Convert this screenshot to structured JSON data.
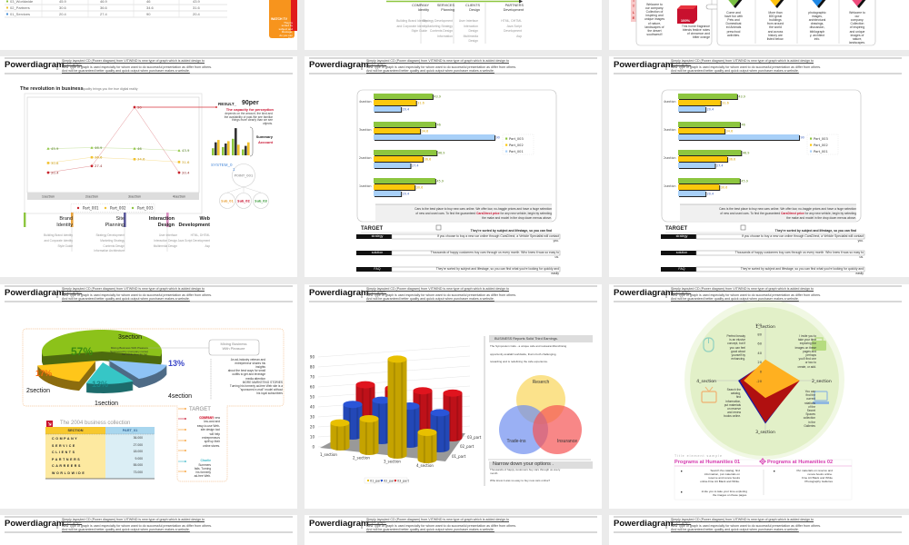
{
  "header": {
    "title": "Powerdiagram",
    "desc": [
      "Simply layouted CD (Power diagram) from VITWIND is new type of graph which is added design to",
      "Simple graph.",
      "New Type of graph is used especially for whom want to do successful presentation as differ from others.",
      "And will be guaranteed better quality and quick output when purchaser makes a website."
    ]
  },
  "top_table": {
    "rows": [
      {
        "label": "03_Worldwide",
        "color": "#8dc63f",
        "values": [
          "45.9",
          "46.9",
          "46",
          "43.9"
        ]
      },
      {
        "label": "02_Partners",
        "color": "#f2c12e",
        "values": [
          "30.6",
          "36.6",
          "34.6",
          "31.6"
        ]
      },
      {
        "label": "01_Services",
        "color": "#4a90d9",
        "values": [
          "20.4",
          "27.4",
          "90",
          "20.4"
        ]
      }
    ],
    "watch_tv": {
      "label": "WATCH TV",
      "lines": [
        "They're",
        "sorted by",
        "subject and",
        "lifestage,",
        "do you can",
        "find"
      ]
    }
  },
  "top_services": [
    {
      "title": "COMPANY",
      "sub": "Identity",
      "items": [
        "Building Brand Identity",
        "and Corporate Identity",
        "Style Guide"
      ]
    },
    {
      "title": "SERVICES",
      "sub": "Planning",
      "items": [
        "Strategy Development",
        "Marketing Strategy",
        "Contents Design",
        "Information"
      ]
    },
    {
      "title": "CLIENTS",
      "sub": "Design",
      "items": [
        "User Interface",
        "Interaction",
        "Design",
        "Multimedia",
        "Design"
      ]
    },
    {
      "title": "PARTNERS",
      "sub": "Development",
      "items": [
        "HTML, DHTML",
        "Java Script",
        "Development",
        "Asp"
      ]
    }
  ],
  "top_cards": {
    "title_letters": [
      "T",
      "I",
      "T",
      "L",
      "E"
    ],
    "welcome": [
      "Welcome to",
      "our company.",
      "Collection of",
      "inspiring and",
      "unique images",
      "of nature,",
      "landscapes of",
      "the desert",
      "southwest!!"
    ],
    "cube_label": "100%",
    "fragrance": [
      "This home fragrance",
      "blends festive notes",
      "of cinnamon and",
      "bitter orange"
    ],
    "cards": [
      {
        "color": "#7ac143",
        "label": "Part_01",
        "lines": [
          "Come and",
          "have fun with",
          "Pets and",
          "Domesticat",
          "ed Animals",
          "preschool",
          "activities."
        ]
      },
      {
        "color": "#ffc20e",
        "label": "Part_02",
        "lines": [
          "More than",
          "800 great",
          "buildings",
          "from around",
          "the world",
          "and across",
          "history are",
          "listed below."
        ]
      },
      {
        "color": "#1e88e5",
        "label": "Part_03",
        "lines": [
          "photographic",
          "images,",
          "architectural",
          "drawings,",
          "discussion,",
          "bibliograph",
          "y, architect",
          "info."
        ]
      },
      {
        "color": "#ef4b7c",
        "label": "Part_04",
        "lines": [
          "Welcome to",
          "our",
          "company.",
          "Collection",
          "of inspiring",
          "and unique",
          "images of",
          "nature,",
          "landscapes."
        ]
      }
    ]
  },
  "revolution": {
    "title": "The revolution in business",
    "subtitle": "quality brings you the true digital reality",
    "result": {
      "label": "RESULT_",
      "value": "90per",
      "heading": "The capacity for perception",
      "lines": [
        "depends on the amount, the kind and",
        "the availability of past.We see familiar",
        "things more clearly than we see",
        "objects."
      ],
      "summary": "Summary",
      "account": "Account"
    },
    "mini_chart": [
      [
        12,
        22,
        26
      ],
      [
        14,
        20,
        24
      ],
      [
        28,
        46,
        18
      ],
      [
        10,
        16,
        22
      ]
    ],
    "system": {
      "label": "SYSTEM_0",
      "label2": "1",
      "point": "POINT_001",
      "subs": [
        "Sub_01",
        "Sub_02",
        "Sub_03"
      ]
    },
    "categories": [
      {
        "title": [
          "Brand",
          "Identity"
        ],
        "color": "#e8a33d",
        "items": [
          "Building Brand Identity",
          "and Corporate Identity",
          "Style Guide"
        ]
      },
      {
        "title": [
          "Site",
          "Planning"
        ],
        "color": "#5c5a9c",
        "items": [
          "Strategy Development",
          "Marketing Strategy",
          "Contents Design",
          "Information Architecture"
        ]
      },
      {
        "title": [
          "Interaction",
          "Design"
        ],
        "color": "#d98fc0",
        "items": [
          "User Interface",
          "Interaction Design",
          "Multimedia Design"
        ]
      },
      {
        "title": [
          "Web",
          "Development"
        ],
        "color": "#8dc63f",
        "items": [
          "HTML, DHTML",
          "Java Script Development",
          "Asp"
        ]
      }
    ]
  },
  "bar_panel": {
    "note": [
      "Cars is the best place to buy new cars online. We offer low, no-haggle prices and have a huge selection",
      "of new and used cars. To find the guaranteed ",
      "CarsDirect price",
      " for any new vehicle, begin by selecting",
      "the make and model in the drop down menus above."
    ],
    "target": "TARGET",
    "target_note": "They're sorted by subject and lifestage, so you can find",
    "rows": [
      {
        "label": "strategy",
        "text": "If you choose to buy a new car online through CarsDirect, a Vehicle Specialist will contact",
        "text2": "you."
      },
      {
        "label": "solution",
        "text": "Thousands of happy customers buy cars through us every month. Who knew it was so easy to",
        "text2": "us."
      },
      {
        "label": "FAQ",
        "text": "They're sorted by subject and lifestage, so you can find what you're looking for quickly and",
        "text2": "easily"
      }
    ]
  },
  "pie_panel": {
    "green_text": [
      "Mixing Business With Pleasure",
      "Sponsored by (company name)",
      "Set aside time for fun."
    ],
    "box": [
      "Mixing Business",
      "With Pleasure"
    ],
    "side_text": [
      "An ad-industry veteran and",
      "entrepreneur shares his",
      "insights",
      "about the best ways for small",
      "outfits to get and leverage",
      "media attention",
      "MORE MARKETING STORIES",
      "Turning his formerly ad-free Web site is a",
      "\"sponsored e-mail\" model without",
      "his loyal subscribers"
    ],
    "target": "TARGET",
    "company": "COMPANY",
    "company_lines": [
      " new",
      "low-cost and",
      "easy-to-use Web-",
      "site design tool",
      "will help",
      "entrepreneurs",
      "spiff up their",
      "online stores."
    ],
    "charlie": "Charlie",
    "charlie_lines": [
      "Summers",
      "fails. Turning",
      "his formerly",
      "ad-free Web."
    ],
    "table": {
      "title": "The 2004 business collection",
      "headers": [
        "SECTION",
        "PART_01"
      ],
      "rows": [
        [
          "COMPANY",
          "36.000"
        ],
        [
          "SERVICE",
          "27.000"
        ],
        [
          "CLIENTS",
          "18.000"
        ],
        [
          "PARTNERS",
          "9.000"
        ],
        [
          "CARREERS",
          "55.000"
        ],
        [
          "WORLDWIDE",
          "73.000"
        ]
      ]
    }
  },
  "venn_panel": {
    "heading": "BUSINESS Reports Solid Third Earnings.",
    "lines": [
      "The Symposium Cafe - a unique cafe and restaurantfranchising",
      "opportunity availabl worldwide, that is both challenging,",
      "rewarding and is redefining the cafe experience."
    ],
    "circles": [
      {
        "label": "Reserch",
        "color": "#f9d55a"
      },
      {
        "label": "Trade-ins",
        "color": "#6f8ff0"
      },
      {
        "label": "Insurance",
        "color": "#f55454"
      }
    ],
    "narrow": "Narrow down your options .",
    "narrow_lines": [
      "Thousands of happy customers buy cars through us every",
      "month.",
      "Who knew it was so easy to buy new cars online?"
    ]
  },
  "radar_panel": {
    "tl": [
      "Perfect beauty",
      "is an elusive",
      "concept, but if",
      "you can feel",
      "good about",
      "yourself by",
      "enhancing."
    ],
    "tr": [
      "I invite you to",
      "take your time",
      "exploring the",
      "images on these",
      "pages and",
      "perhaps",
      "you'll find one",
      "or two to",
      "create, or add."
    ],
    "bl": [
      "Search the",
      "catalog,",
      "find",
      "information,",
      "put materials",
      "on reserve",
      "and renew",
      "books online."
    ],
    "br": [
      "You can",
      "find the",
      "current",
      "rotations",
      "of the",
      "Secret",
      "Spaces",
      "collection",
      "in the",
      "Galleries"
    ],
    "title_sample": "Title element sample",
    "programs": [
      "Programs at Humanities 01",
      "Programs at Humanities 02"
    ],
    "col1": [
      "Search the catalog, find",
      "information, put materials on",
      "reserve and renew books",
      "online.Fine Art Black and White."
    ],
    "col1b": [
      "invite you to take your time exploring",
      "the images on these pages."
    ],
    "col2": [
      "Put materials on reserve and",
      "renew books online.",
      "Fine Art Black and White",
      "Photography Galleries"
    ]
  },
  "chart_data": [
    {
      "type": "line",
      "categories": [
        "1section",
        "2section",
        "3section",
        "4section"
      ],
      "series": [
        {
          "name": "Part_001",
          "color": "#c8232c",
          "values": [
            20.4,
            27.4,
            90,
            20.4
          ]
        },
        {
          "name": "Part_002",
          "color": "#f2c12e",
          "values": [
            30.6,
            36.6,
            34.6,
            31.6
          ]
        },
        {
          "name": "Part_003",
          "color": "#8dc63f",
          "values": [
            45.9,
            46.9,
            46,
            43.9
          ]
        }
      ],
      "legend": "bottom",
      "grid": false
    },
    {
      "type": "bar",
      "orientation": "horizontal",
      "categories": [
        "1section",
        "2section",
        "3section",
        "4section"
      ],
      "series": [
        {
          "name": "Part_003",
          "color": "#8dc63f",
          "values": [
            45.9,
            46.9,
            46,
            43.9
          ]
        },
        {
          "name": "Part_002",
          "color": "#fcc80c",
          "values": [
            30.6,
            36.6,
            34.6,
            31.6
          ]
        },
        {
          "name": "Part_001",
          "color": "#a8d0f8",
          "values": [
            20.4,
            27.4,
            90,
            20.4
          ]
        }
      ],
      "legend": "right"
    },
    {
      "type": "bar",
      "orientation": "horizontal",
      "categories": [
        "1section",
        "2section",
        "3section",
        "4section"
      ],
      "series": [
        {
          "name": "Part_003",
          "color": "#8dc63f",
          "values": [
            45.9,
            46.9,
            46,
            43.9
          ]
        },
        {
          "name": "Part_002",
          "color": "#fcc80c",
          "values": [
            30.6,
            36.6,
            34.6,
            31.6
          ]
        },
        {
          "name": "Part_001",
          "color": "#a8d0f8",
          "values": [
            20.4,
            27.4,
            90,
            20.4
          ]
        }
      ],
      "legend": "right"
    },
    {
      "type": "pie",
      "style": "3d-exploded",
      "slices": [
        {
          "label": "3section",
          "value": 57,
          "text": "57%",
          "color": "#8cc21a"
        },
        {
          "label": "4section",
          "value": 13,
          "text": "13%",
          "color": "#8ec3f5"
        },
        {
          "label": "1section",
          "value": 13,
          "text": "13%",
          "color": "#36c6c6"
        },
        {
          "label": "2section",
          "value": 17,
          "text": "17%",
          "color": "#ffc61a"
        }
      ]
    },
    {
      "type": "bar",
      "style": "3d-cylinder",
      "categories": [
        "1_section",
        "2_section",
        "3_section",
        "4_section"
      ],
      "series": [
        {
          "name": "01_part",
          "color": "#e8c000",
          "values": [
            22,
            30,
            88,
            25
          ]
        },
        {
          "name": "02_part",
          "color": "#2a55d8",
          "values": [
            29,
            37,
            35,
            33
          ]
        },
        {
          "name": "03_part",
          "color": "#e0141e",
          "values": [
            37,
            38,
            39,
            41
          ]
        }
      ],
      "yticks": [
        "0",
        "10",
        "20",
        "30",
        "40",
        "50",
        "60",
        "70",
        "80",
        "90"
      ],
      "ylim": [
        0,
        90
      ],
      "legend": "bottom"
    },
    {
      "type": "radar",
      "axes": [
        "1_section",
        "2_section",
        "3_section",
        "4_section"
      ],
      "ticks": [
        "100",
        "80",
        "60",
        "40",
        "20",
        "0",
        "-20"
      ],
      "range": [
        -20,
        100
      ],
      "series": [
        {
          "color": "#1a1aa0",
          "values": [
            18,
            50,
            72,
            38
          ]
        },
        {
          "color": "#b01010",
          "values": [
            20,
            53,
            69,
            34
          ]
        },
        {
          "color": "#ffb020",
          "values": [
            25,
            53,
            17,
            26
          ]
        }
      ]
    }
  ]
}
